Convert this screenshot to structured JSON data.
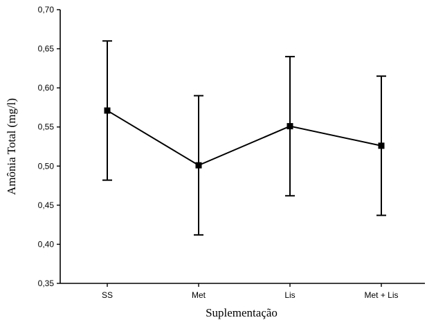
{
  "chart_data": {
    "type": "line",
    "title": "",
    "xlabel": "Suplementação",
    "ylabel": "Amônia Total (mg/l)",
    "ylim": [
      0.35,
      0.7
    ],
    "yticks": [
      "0,35",
      "0,40",
      "0,45",
      "0,50",
      "0,55",
      "0,60",
      "0,65",
      "0,70"
    ],
    "yticks_values": [
      0.35,
      0.4,
      0.45,
      0.5,
      0.55,
      0.6,
      0.65,
      0.7
    ],
    "categories": [
      "SS",
      "Met",
      "Lis",
      "Met + Lis"
    ],
    "series": [
      {
        "values": [
          0.571,
          0.501,
          0.551,
          0.526
        ],
        "error_low": [
          0.482,
          0.412,
          0.462,
          0.437
        ],
        "error_high": [
          0.66,
          0.59,
          0.64,
          0.615
        ]
      }
    ],
    "grid": false,
    "legend": "none",
    "color": "#000000"
  }
}
